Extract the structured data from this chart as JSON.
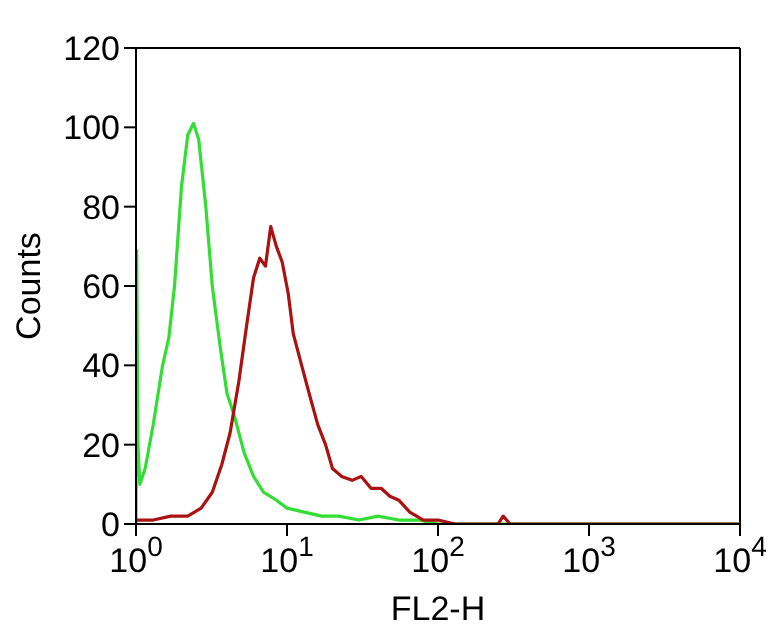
{
  "chart_data": {
    "type": "line",
    "xlabel": "FL2-H",
    "ylabel": "Counts",
    "log": "x",
    "xlim": [
      1,
      10000
    ],
    "xticks": [
      {
        "value": 1,
        "label": "10$^{0}$"
      },
      {
        "value": 10,
        "label": "10$^{1}$"
      },
      {
        "value": 100,
        "label": "10$^{2}$"
      },
      {
        "value": 1000,
        "label": "10$^{3}$"
      },
      {
        "value": 10000,
        "label": "10$^{4}$"
      }
    ],
    "ylim": [
      0,
      120
    ],
    "yticks": [
      0,
      20,
      40,
      60,
      80,
      100,
      120
    ],
    "marker": "none",
    "line_style": "solid",
    "series": [
      {
        "color": "#33dd33",
        "x": [
          1,
          1.01,
          1.03,
          1.06,
          1.15,
          1.3,
          1.5,
          1.65,
          1.8,
          2.0,
          2.2,
          2.4,
          2.6,
          2.9,
          3.2,
          3.6,
          4.0,
          4.5,
          5.2,
          6,
          7,
          8.5,
          10,
          13,
          17,
          22,
          30,
          40,
          55,
          75,
          100,
          10000
        ],
        "values": [
          0,
          69,
          20,
          10,
          14,
          25,
          40,
          47,
          60,
          85,
          98,
          101,
          97,
          80,
          60,
          45,
          33,
          27,
          18,
          12,
          8,
          6,
          4,
          3,
          2,
          2,
          1,
          2,
          1,
          1,
          0,
          0
        ]
      },
      {
        "color": "#aa1111",
        "x": [
          1,
          1.3,
          1.7,
          2.2,
          2.7,
          3.2,
          3.7,
          4.2,
          4.8,
          5.4,
          6,
          6.6,
          7.2,
          7.8,
          8.5,
          9.3,
          10.2,
          11,
          12.5,
          14,
          16,
          18,
          20,
          23,
          27,
          31,
          36,
          42,
          48,
          55,
          65,
          80,
          100,
          130,
          250,
          270,
          300,
          10000
        ],
        "values": [
          1,
          1,
          2,
          2,
          4,
          8,
          15,
          23,
          36,
          50,
          62,
          67,
          65,
          75,
          70,
          66,
          58,
          48,
          40,
          33,
          25,
          20,
          14,
          12,
          11,
          12,
          9,
          9,
          7,
          6,
          3,
          1,
          1,
          0,
          0,
          2,
          0,
          0
        ]
      }
    ]
  }
}
